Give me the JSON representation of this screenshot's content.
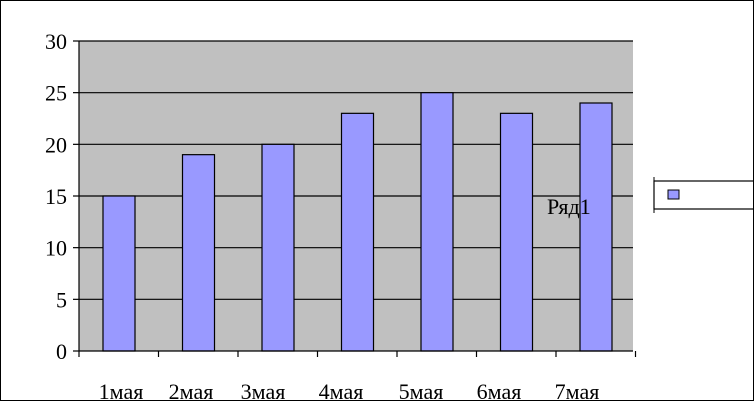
{
  "chart_data": {
    "type": "bar",
    "categories": [
      "1мая",
      "2мая",
      "3мая",
      "4мая",
      "5мая",
      "6мая",
      "7мая"
    ],
    "series": [
      {
        "name": "Ряд1",
        "values": [
          15,
          19,
          20,
          23,
          25,
          23,
          24
        ],
        "color": "#9999ff"
      }
    ],
    "ylim": [
      0,
      30
    ],
    "yticks": [
      0,
      5,
      10,
      15,
      20,
      25,
      30
    ],
    "grid": true,
    "plot_background": "#c0c0c0",
    "series_label": "Ряд1",
    "legend_position": "right"
  }
}
